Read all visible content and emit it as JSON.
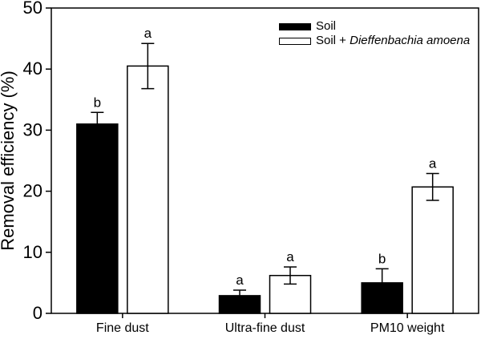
{
  "figure": {
    "background": "#ffffff",
    "axis_color": "#000000",
    "bar_colors": {
      "soil": "#000000",
      "soil_plant": "#ffffff"
    }
  },
  "chart_data": {
    "type": "bar",
    "title": "",
    "xlabel": "",
    "ylabel": "Removal efficiency (%)",
    "ylim": [
      0,
      50
    ],
    "yticks": [
      0,
      10,
      20,
      30,
      40,
      50
    ],
    "grid": false,
    "legend_position": "top-right",
    "categories": [
      "Fine dust",
      "Ultra-fine dust",
      "PM10 weight"
    ],
    "series": [
      {
        "name": "Soil",
        "name_plain": "Soil",
        "name_italic": "",
        "fill": "#000000",
        "stroke": "#000000",
        "values": [
          31.0,
          2.9,
          5.0
        ],
        "errors": [
          1.9,
          0.9,
          2.3
        ],
        "sig_letters": [
          "b",
          "a",
          "b"
        ]
      },
      {
        "name": "Soil + Dieffenbachia amoena",
        "name_plain": "Soil + ",
        "name_italic": "Dieffenbachia amoena",
        "fill": "#ffffff",
        "stroke": "#000000",
        "values": [
          40.5,
          6.2,
          20.7
        ],
        "errors": [
          3.7,
          1.4,
          2.2
        ],
        "sig_letters": [
          "a",
          "a",
          "a"
        ]
      }
    ]
  }
}
